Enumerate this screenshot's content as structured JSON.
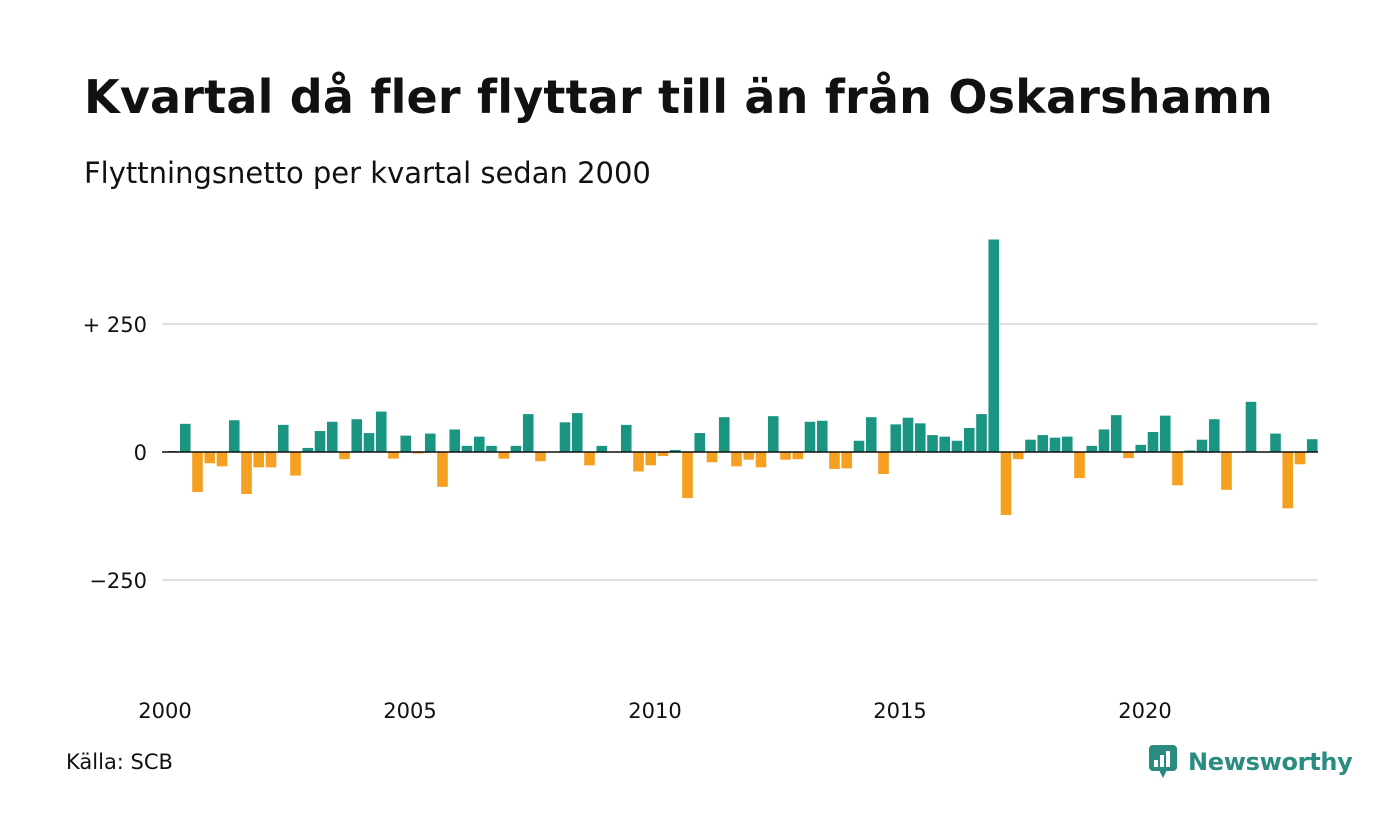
{
  "header": {
    "title": "Kvartal då fler flyttar till än från Oskarshamn",
    "subtitle": "Flyttningsnetto per kvartal sedan 2000"
  },
  "footer": {
    "source": "Källa: SCB",
    "brand": "Newsworthy"
  },
  "colors": {
    "positive": "#1a9582",
    "negative": "#f5a020",
    "grid": "#e2e2e2",
    "zero_line": "#111111",
    "brand": "#2a8c80"
  },
  "icons": {
    "brand_logo": "bar-chart-speech-bubble-icon"
  },
  "chart_data": {
    "type": "bar",
    "title": "Kvartal då fler flyttar till än från Oskarshamn",
    "subtitle": "Flyttningsnetto per kvartal sedan 2000",
    "xlabel": "",
    "ylabel": "",
    "x_start": "2000 Q1",
    "x_tick_labels": [
      "2000",
      "2005",
      "2010",
      "2015",
      "2020"
    ],
    "y_tick_labels": [
      "+ 250",
      "0",
      "−250"
    ],
    "y_ticks": [
      250,
      0,
      -250
    ],
    "ylim": [
      -400,
      420
    ],
    "grid": true,
    "legend": "none",
    "values": [
      2,
      55,
      -78,
      -22,
      -28,
      62,
      -82,
      -30,
      -30,
      53,
      -46,
      8,
      41,
      59,
      -14,
      64,
      37,
      79,
      -13,
      32,
      -3,
      36,
      -68,
      44,
      12,
      30,
      12,
      -13,
      12,
      74,
      -18,
      0,
      58,
      76,
      -26,
      12,
      0,
      53,
      -38,
      -26,
      -8,
      4,
      -90,
      37,
      -20,
      68,
      -28,
      -15,
      -30,
      70,
      -15,
      -14,
      59,
      61,
      -33,
      -32,
      22,
      68,
      -43,
      54,
      67,
      56,
      33,
      30,
      22,
      47,
      74,
      415,
      -123,
      -14,
      24,
      33,
      28,
      30,
      -51,
      12,
      44,
      72,
      -12,
      14,
      39,
      71,
      -65,
      3,
      24,
      64,
      -74,
      0,
      98,
      0,
      36,
      -110,
      -24,
      25
    ]
  }
}
